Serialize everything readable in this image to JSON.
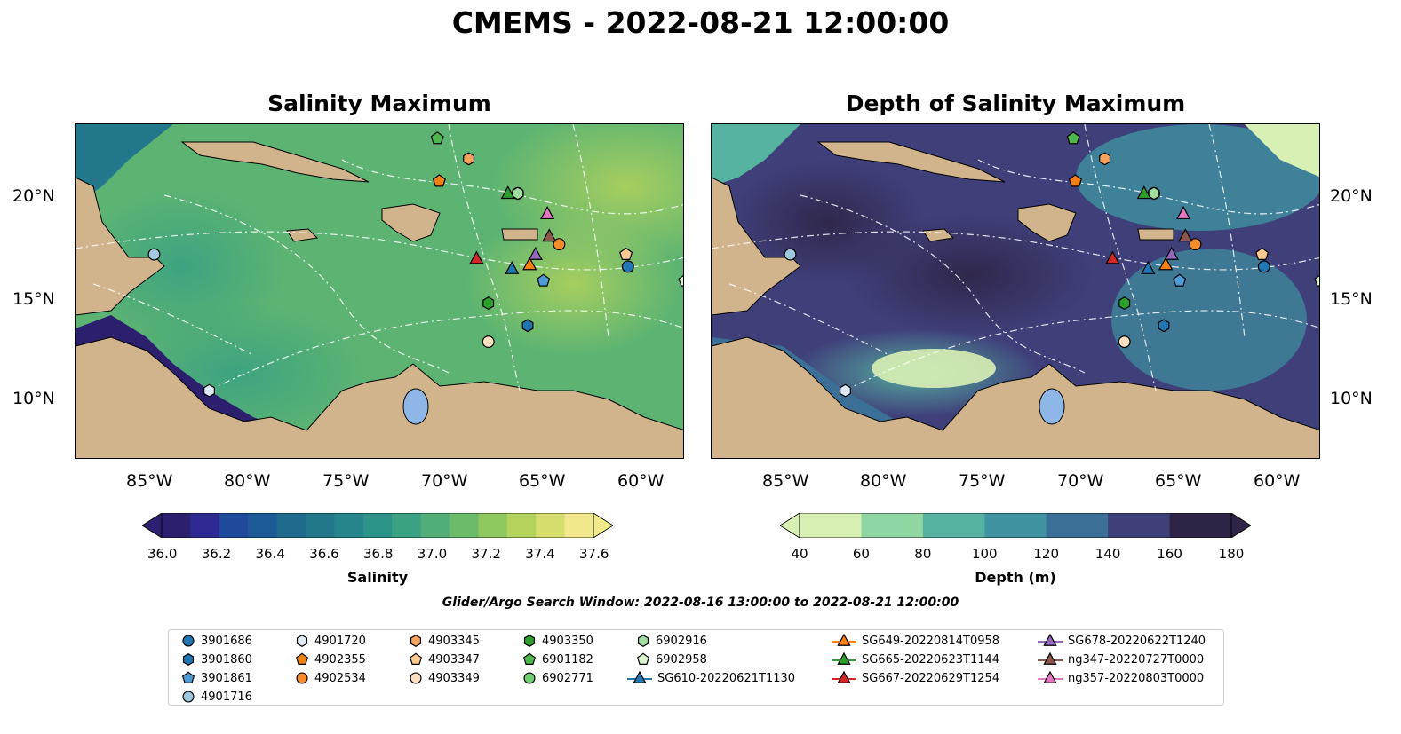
{
  "title": "CMEMS - 2022-08-21 12:00:00",
  "panels": {
    "left": {
      "title": "Salinity Maximum"
    },
    "right": {
      "title": "Depth of Salinity Maximum"
    }
  },
  "lat_labels": [
    "20°N",
    "15°N",
    "10°N"
  ],
  "lon_labels": [
    "85°W",
    "80°W",
    "75°W",
    "70°W",
    "65°W",
    "60°W"
  ],
  "colorbars": {
    "salinity": {
      "label": "Salinity",
      "ticks": [
        "36.0",
        "36.2",
        "36.4",
        "36.6",
        "36.8",
        "37.0",
        "37.2",
        "37.4",
        "37.6"
      ],
      "colors": [
        "#2b1f6e",
        "#2f2a93",
        "#1f4a9c",
        "#1c5b97",
        "#1f6b8e",
        "#22778a",
        "#25858a",
        "#2b9388",
        "#3aa182",
        "#52ae78",
        "#6cbb6a",
        "#8ec75e",
        "#b3d35c",
        "#d6df6e",
        "#f2e98d"
      ]
    },
    "depth": {
      "label": "Depth (m)",
      "ticks": [
        "40",
        "60",
        "80",
        "100",
        "120",
        "140",
        "160",
        "180"
      ],
      "colors": [
        "#d9f0b5",
        "#8fd6a2",
        "#56b3a2",
        "#3f92a0",
        "#3b6f96",
        "#3f3f7a",
        "#2e2546"
      ]
    }
  },
  "search_window": "Glider/Argo Search Window: 2022-08-16 13:00:00 to 2022-08-21 12:00:00",
  "legend": [
    {
      "label": "3901686",
      "marker": "circle",
      "color": "#1f77b4"
    },
    {
      "label": "3901860",
      "marker": "hexagon",
      "color": "#1f77b4"
    },
    {
      "label": "3901861",
      "marker": "pentagon",
      "color": "#4b9bd6"
    },
    {
      "label": "4901716",
      "marker": "circle",
      "color": "#9ecae1"
    },
    {
      "label": "4901720",
      "marker": "hexagon",
      "color": "#deebf7"
    },
    {
      "label": "4902355",
      "marker": "pentagon",
      "color": "#f07f14"
    },
    {
      "label": "4902534",
      "marker": "circle",
      "color": "#f58d2a"
    },
    {
      "label": "4903345",
      "marker": "hexagon",
      "color": "#f7a35c"
    },
    {
      "label": "4903347",
      "marker": "pentagon",
      "color": "#fdc98f"
    },
    {
      "label": "4903349",
      "marker": "circle",
      "color": "#fde0c0"
    },
    {
      "label": "4903350",
      "marker": "hexagon",
      "color": "#2ca02c"
    },
    {
      "label": "6901182",
      "marker": "pentagon",
      "color": "#4cb84c"
    },
    {
      "label": "6902771",
      "marker": "circle",
      "color": "#6fcf6f"
    },
    {
      "label": "6902916",
      "marker": "hexagon",
      "color": "#a1dca1"
    },
    {
      "label": "6902958",
      "marker": "pentagon",
      "color": "#d9f5d0"
    },
    {
      "label": "SG610-20220621T1130",
      "marker": "triangle-line",
      "color": "#1f77b4"
    },
    {
      "label": "SG649-20220814T0958",
      "marker": "triangle-line",
      "color": "#ff7f0e"
    },
    {
      "label": "SG665-20220623T1144",
      "marker": "triangle-line",
      "color": "#2ca02c"
    },
    {
      "label": "SG667-20220629T1254",
      "marker": "triangle-line",
      "color": "#d62728"
    },
    {
      "label": "SG678-20220622T1240",
      "marker": "triangle-line",
      "color": "#9467bd"
    },
    {
      "label": "ng347-20220727T0000",
      "marker": "triangle-line",
      "color": "#8c564b"
    },
    {
      "label": "ng357-20220803T0000",
      "marker": "triangle-line",
      "color": "#e377c2"
    }
  ],
  "platform_positions": [
    {
      "label": "3901686",
      "lon": -60.9,
      "lat": 16.5
    },
    {
      "label": "3901860",
      "lon": -66.0,
      "lat": 13.6
    },
    {
      "label": "3901861",
      "lon": -65.2,
      "lat": 15.8
    },
    {
      "label": "4901716",
      "lon": -85.0,
      "lat": 17.1
    },
    {
      "label": "4901720",
      "lon": -82.2,
      "lat": 10.4
    },
    {
      "label": "4902355",
      "lon": -70.5,
      "lat": 20.7
    },
    {
      "label": "4902534",
      "lon": -64.4,
      "lat": 17.6
    },
    {
      "label": "4903345",
      "lon": -69.0,
      "lat": 21.8
    },
    {
      "label": "4903347",
      "lon": -61.0,
      "lat": 17.1
    },
    {
      "label": "4903349",
      "lon": -68.0,
      "lat": 12.8
    },
    {
      "label": "4903350",
      "lon": -68.0,
      "lat": 14.7
    },
    {
      "label": "6901182",
      "lon": -70.6,
      "lat": 22.8
    },
    {
      "label": "6902771",
      "lon": -66.5,
      "lat": 20.1
    },
    {
      "label": "6902916",
      "lon": -66.5,
      "lat": 20.1
    },
    {
      "label": "6902958",
      "lon": -58.0,
      "lat": 15.8
    },
    {
      "label": "SG610-20220621T1130",
      "lon": -66.8,
      "lat": 16.4
    },
    {
      "label": "SG649-20220814T0958",
      "lon": -65.9,
      "lat": 16.6
    },
    {
      "label": "SG665-20220623T1144",
      "lon": -67.0,
      "lat": 20.1
    },
    {
      "label": "SG667-20220629T1254",
      "lon": -68.6,
      "lat": 16.9
    },
    {
      "label": "SG678-20220622T1240",
      "lon": -65.6,
      "lat": 17.1
    },
    {
      "label": "ng347-20220727T0000",
      "lon": -64.9,
      "lat": 18.0
    },
    {
      "label": "ng357-20220803T0000",
      "lon": -65.0,
      "lat": 19.1
    }
  ],
  "map_extent": {
    "lon": [
      -89,
      -58
    ],
    "lat": [
      7,
      23.5
    ]
  },
  "colors": {
    "land": "#d2b48c",
    "lake": "#8eb6e6",
    "coast": "#000000"
  }
}
